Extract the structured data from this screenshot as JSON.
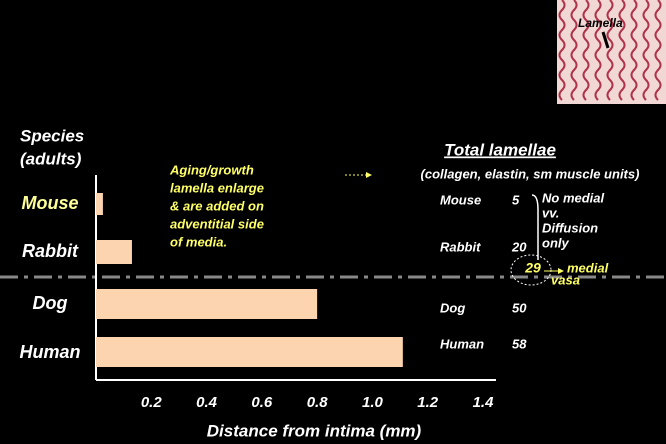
{
  "chart_data": {
    "type": "bar",
    "orientation": "horizontal",
    "y_label": [
      "Species",
      "(adults)"
    ],
    "x_label": "Distance from intima (mm)",
    "categories": [
      "Mouse",
      "Rabbit",
      "Dog",
      "Human"
    ],
    "category_colors": [
      "#ffff99",
      "#ffffff",
      "#ffffff",
      "#ffffff"
    ],
    "values": [
      0.025,
      0.13,
      0.8,
      1.11
    ],
    "color": "#fcd5b0",
    "xlim": [
      0,
      1.4
    ],
    "xticks": [
      0.2,
      0.4,
      0.6,
      0.8,
      {
        "value": 1.0,
        "label": "1.0"
      },
      1.2,
      1.4
    ],
    "annotation": [
      "Aging/growth",
      "lamella enlarge",
      "& are added on",
      "adventitial side",
      "of media."
    ],
    "lamellae": {
      "title": "Total lamellae",
      "subtitle": "(collagen, elastin, sm muscle units)",
      "rows": [
        [
          "Mouse",
          5
        ],
        [
          "Rabbit",
          20
        ],
        [
          "Dog",
          50
        ],
        [
          "Human",
          58
        ]
      ],
      "threshold": 29,
      "threshold_label": [
        "medial",
        "vasa"
      ],
      "note": [
        "No medial",
        "vv.",
        "Diffusion",
        "only"
      ]
    },
    "inset_label": "Lamella"
  }
}
